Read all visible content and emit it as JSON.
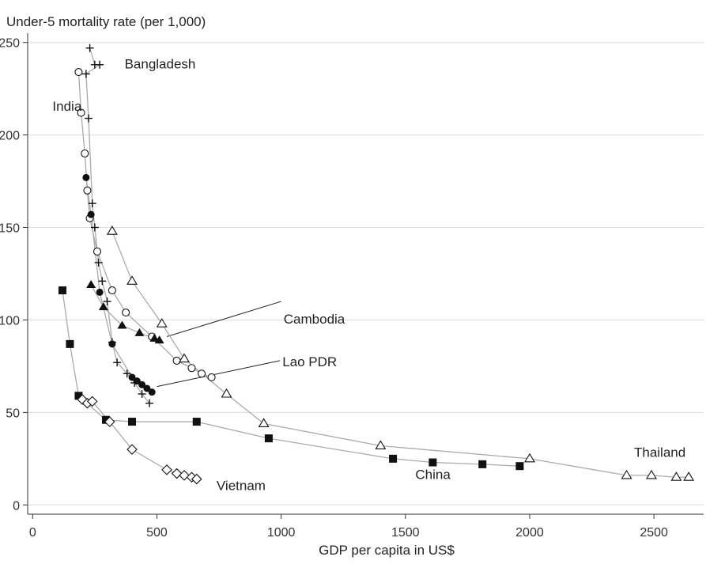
{
  "chart_data": {
    "type": "scatter",
    "title": "",
    "ylabel": "Under-5 mortality rate (per 1,000)",
    "xlabel": "GDP per capita in US$",
    "xlim": [
      -20,
      2700
    ],
    "ylim": [
      -5,
      255
    ],
    "xticks": [
      0,
      500,
      1000,
      1500,
      2000,
      2500
    ],
    "yticks": [
      0,
      50,
      100,
      150,
      200,
      250
    ],
    "xtick_labels": [
      "0",
      "500",
      "1000",
      "1500",
      "2000",
      "2500"
    ],
    "ytick_labels": [
      "0",
      "50",
      "100",
      "150",
      "200",
      "250"
    ],
    "grid": "horizontal",
    "line_color": "#aaaaaa",
    "marker_color": "#111111",
    "series": [
      {
        "name": "Bangladesh",
        "marker": "plus",
        "points": [
          [
            230,
            247
          ],
          [
            250,
            238
          ],
          [
            270,
            238
          ],
          [
            215,
            233
          ],
          [
            225,
            209
          ],
          [
            240,
            163
          ],
          [
            250,
            150
          ],
          [
            265,
            131
          ],
          [
            280,
            121
          ],
          [
            300,
            110
          ],
          [
            320,
            88
          ],
          [
            340,
            77
          ],
          [
            380,
            71
          ],
          [
            410,
            66
          ],
          [
            440,
            60
          ],
          [
            470,
            55
          ]
        ]
      },
      {
        "name": "India",
        "marker": "circle",
        "points": [
          [
            185,
            234
          ],
          [
            195,
            212
          ],
          [
            210,
            190
          ],
          [
            220,
            170
          ],
          [
            230,
            155
          ],
          [
            260,
            137
          ],
          [
            320,
            116
          ],
          [
            375,
            104
          ],
          [
            480,
            91
          ],
          [
            580,
            78
          ],
          [
            640,
            74
          ],
          [
            680,
            71
          ],
          [
            720,
            69
          ]
        ]
      },
      {
        "name": "Cambodia",
        "marker": "triangle",
        "points": [
          [
            320,
            148
          ],
          [
            400,
            121
          ],
          [
            520,
            98
          ],
          [
            610,
            79
          ],
          [
            780,
            60
          ],
          [
            930,
            44
          ],
          [
            1400,
            32
          ],
          [
            2000,
            25
          ],
          [
            2390,
            16
          ],
          [
            2490,
            16
          ],
          [
            2590,
            15
          ],
          [
            2640,
            15
          ]
        ]
      },
      {
        "name": "Cambodia-filled",
        "marker": "triangle-filled",
        "points": [
          [
            235,
            119
          ],
          [
            285,
            107
          ],
          [
            360,
            97
          ],
          [
            430,
            93
          ],
          [
            490,
            90
          ],
          [
            510,
            89
          ]
        ]
      },
      {
        "name": "Lao PDR",
        "marker": "circle-filled",
        "points": [
          [
            215,
            177
          ],
          [
            235,
            157
          ],
          [
            270,
            115
          ],
          [
            320,
            87
          ],
          [
            400,
            69
          ],
          [
            420,
            67
          ],
          [
            440,
            65
          ],
          [
            460,
            63
          ],
          [
            480,
            61
          ]
        ]
      },
      {
        "name": "China",
        "marker": "square-filled",
        "points": [
          [
            120,
            116
          ],
          [
            150,
            87
          ],
          [
            185,
            59
          ],
          [
            295,
            46
          ],
          [
            400,
            45
          ],
          [
            660,
            45
          ],
          [
            950,
            36
          ],
          [
            1450,
            25
          ],
          [
            1610,
            23
          ],
          [
            1810,
            22
          ],
          [
            1960,
            21
          ]
        ]
      },
      {
        "name": "Vietnam",
        "marker": "diamond",
        "points": [
          [
            200,
            57
          ],
          [
            220,
            55
          ],
          [
            240,
            56
          ],
          [
            310,
            45
          ],
          [
            400,
            30
          ],
          [
            540,
            19
          ],
          [
            580,
            17
          ],
          [
            610,
            16
          ],
          [
            640,
            15
          ],
          [
            660,
            14
          ]
        ]
      }
    ],
    "annotations": [
      {
        "text": "Bangladesh",
        "x": 370,
        "y": 236,
        "anchor": "start"
      },
      {
        "text": "India",
        "x": 80,
        "y": 213,
        "anchor": "start"
      },
      {
        "text": "Cambodia",
        "x": 1010,
        "y": 98,
        "anchor": "start"
      },
      {
        "text": "Lao PDR",
        "x": 1005,
        "y": 75,
        "anchor": "start"
      },
      {
        "text": "Thailand",
        "x": 2420,
        "y": 26,
        "anchor": "start"
      },
      {
        "text": "China",
        "x": 1540,
        "y": 14,
        "anchor": "start"
      },
      {
        "text": "Vietnam",
        "x": 740,
        "y": 8,
        "anchor": "start"
      }
    ],
    "leader_lines": [
      {
        "from": [
          540,
          91
        ],
        "to": [
          1000,
          110
        ]
      },
      {
        "from": [
          500,
          64
        ],
        "to": [
          995,
          78
        ]
      }
    ]
  }
}
